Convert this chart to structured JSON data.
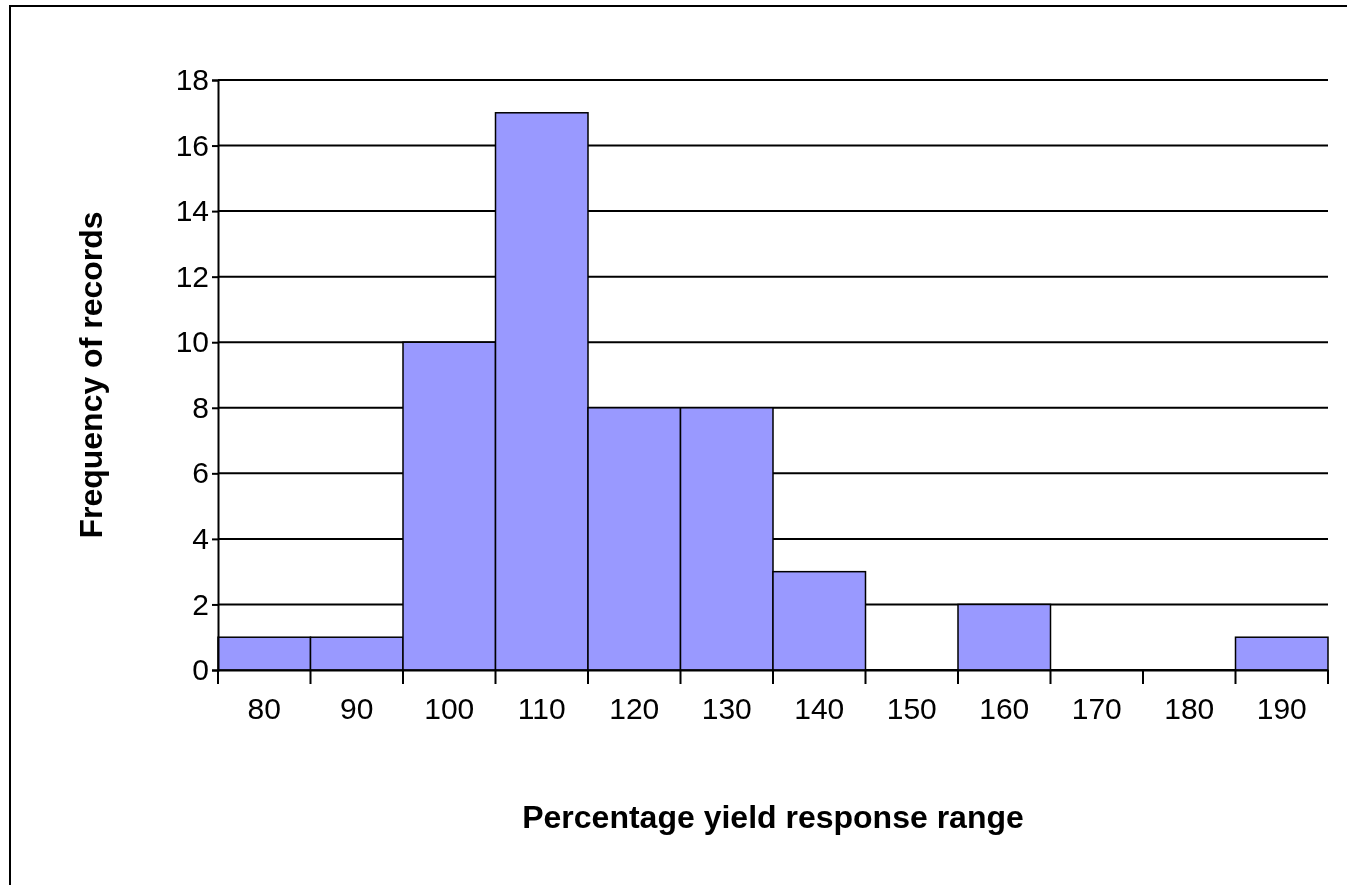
{
  "chart_data": {
    "type": "bar",
    "xlabel": "Percentage yield response range",
    "ylabel": "Frequency of records",
    "categories": [
      "80",
      "90",
      "100",
      "110",
      "120",
      "130",
      "140",
      "150",
      "160",
      "170",
      "180",
      "190"
    ],
    "values": [
      1,
      1,
      10,
      17,
      8,
      8,
      3,
      0,
      2,
      0,
      0,
      1
    ],
    "color": "#9999ff",
    "ylim": [
      0,
      18
    ],
    "yticks": [
      0,
      2,
      4,
      6,
      8,
      10,
      12,
      14,
      16,
      18
    ],
    "grid": "y"
  }
}
